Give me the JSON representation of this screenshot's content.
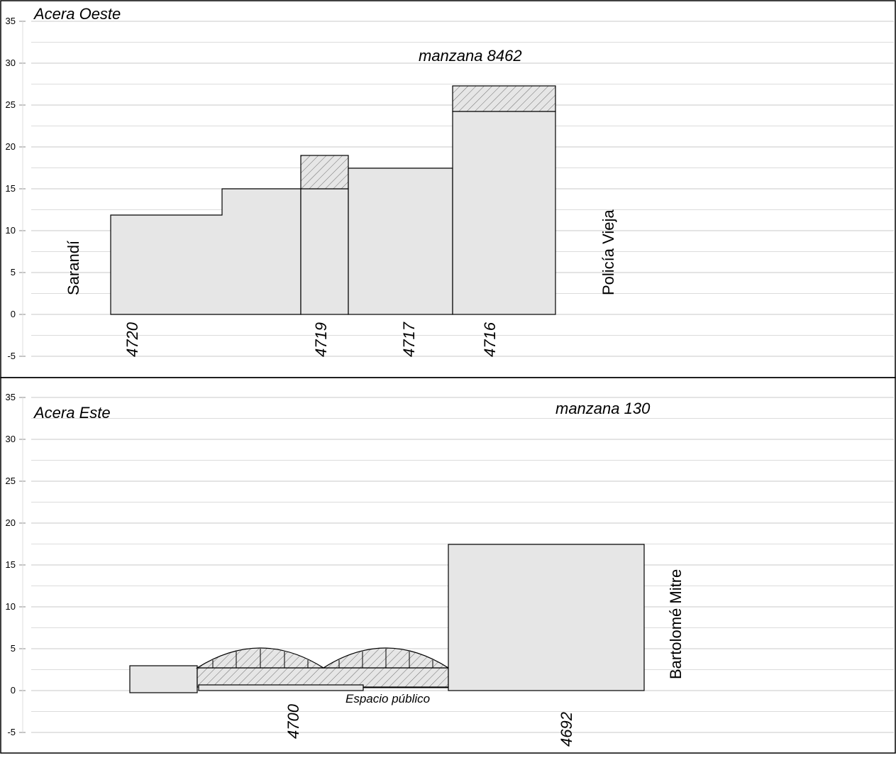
{
  "axis_ticks": [
    "35",
    "30",
    "25",
    "20",
    "15",
    "10",
    "5",
    "0",
    "-5"
  ],
  "west": {
    "side_label": "Acera Oeste",
    "block_label": "manzana 8462",
    "street_left": "Sarandí",
    "street_right": "Policía Vieja",
    "lots": [
      "4720",
      "4719",
      "4717",
      "4716"
    ]
  },
  "east": {
    "side_label": "Acera Este",
    "block_label": "manzana 130",
    "street_right": "Bartolomé Mitre",
    "lots": [
      "4700",
      "4692"
    ],
    "note": "Espacio público"
  },
  "colors": {
    "fill": "#e6e6e6",
    "grid": "#c8c8c8",
    "stroke": "#000000"
  }
}
